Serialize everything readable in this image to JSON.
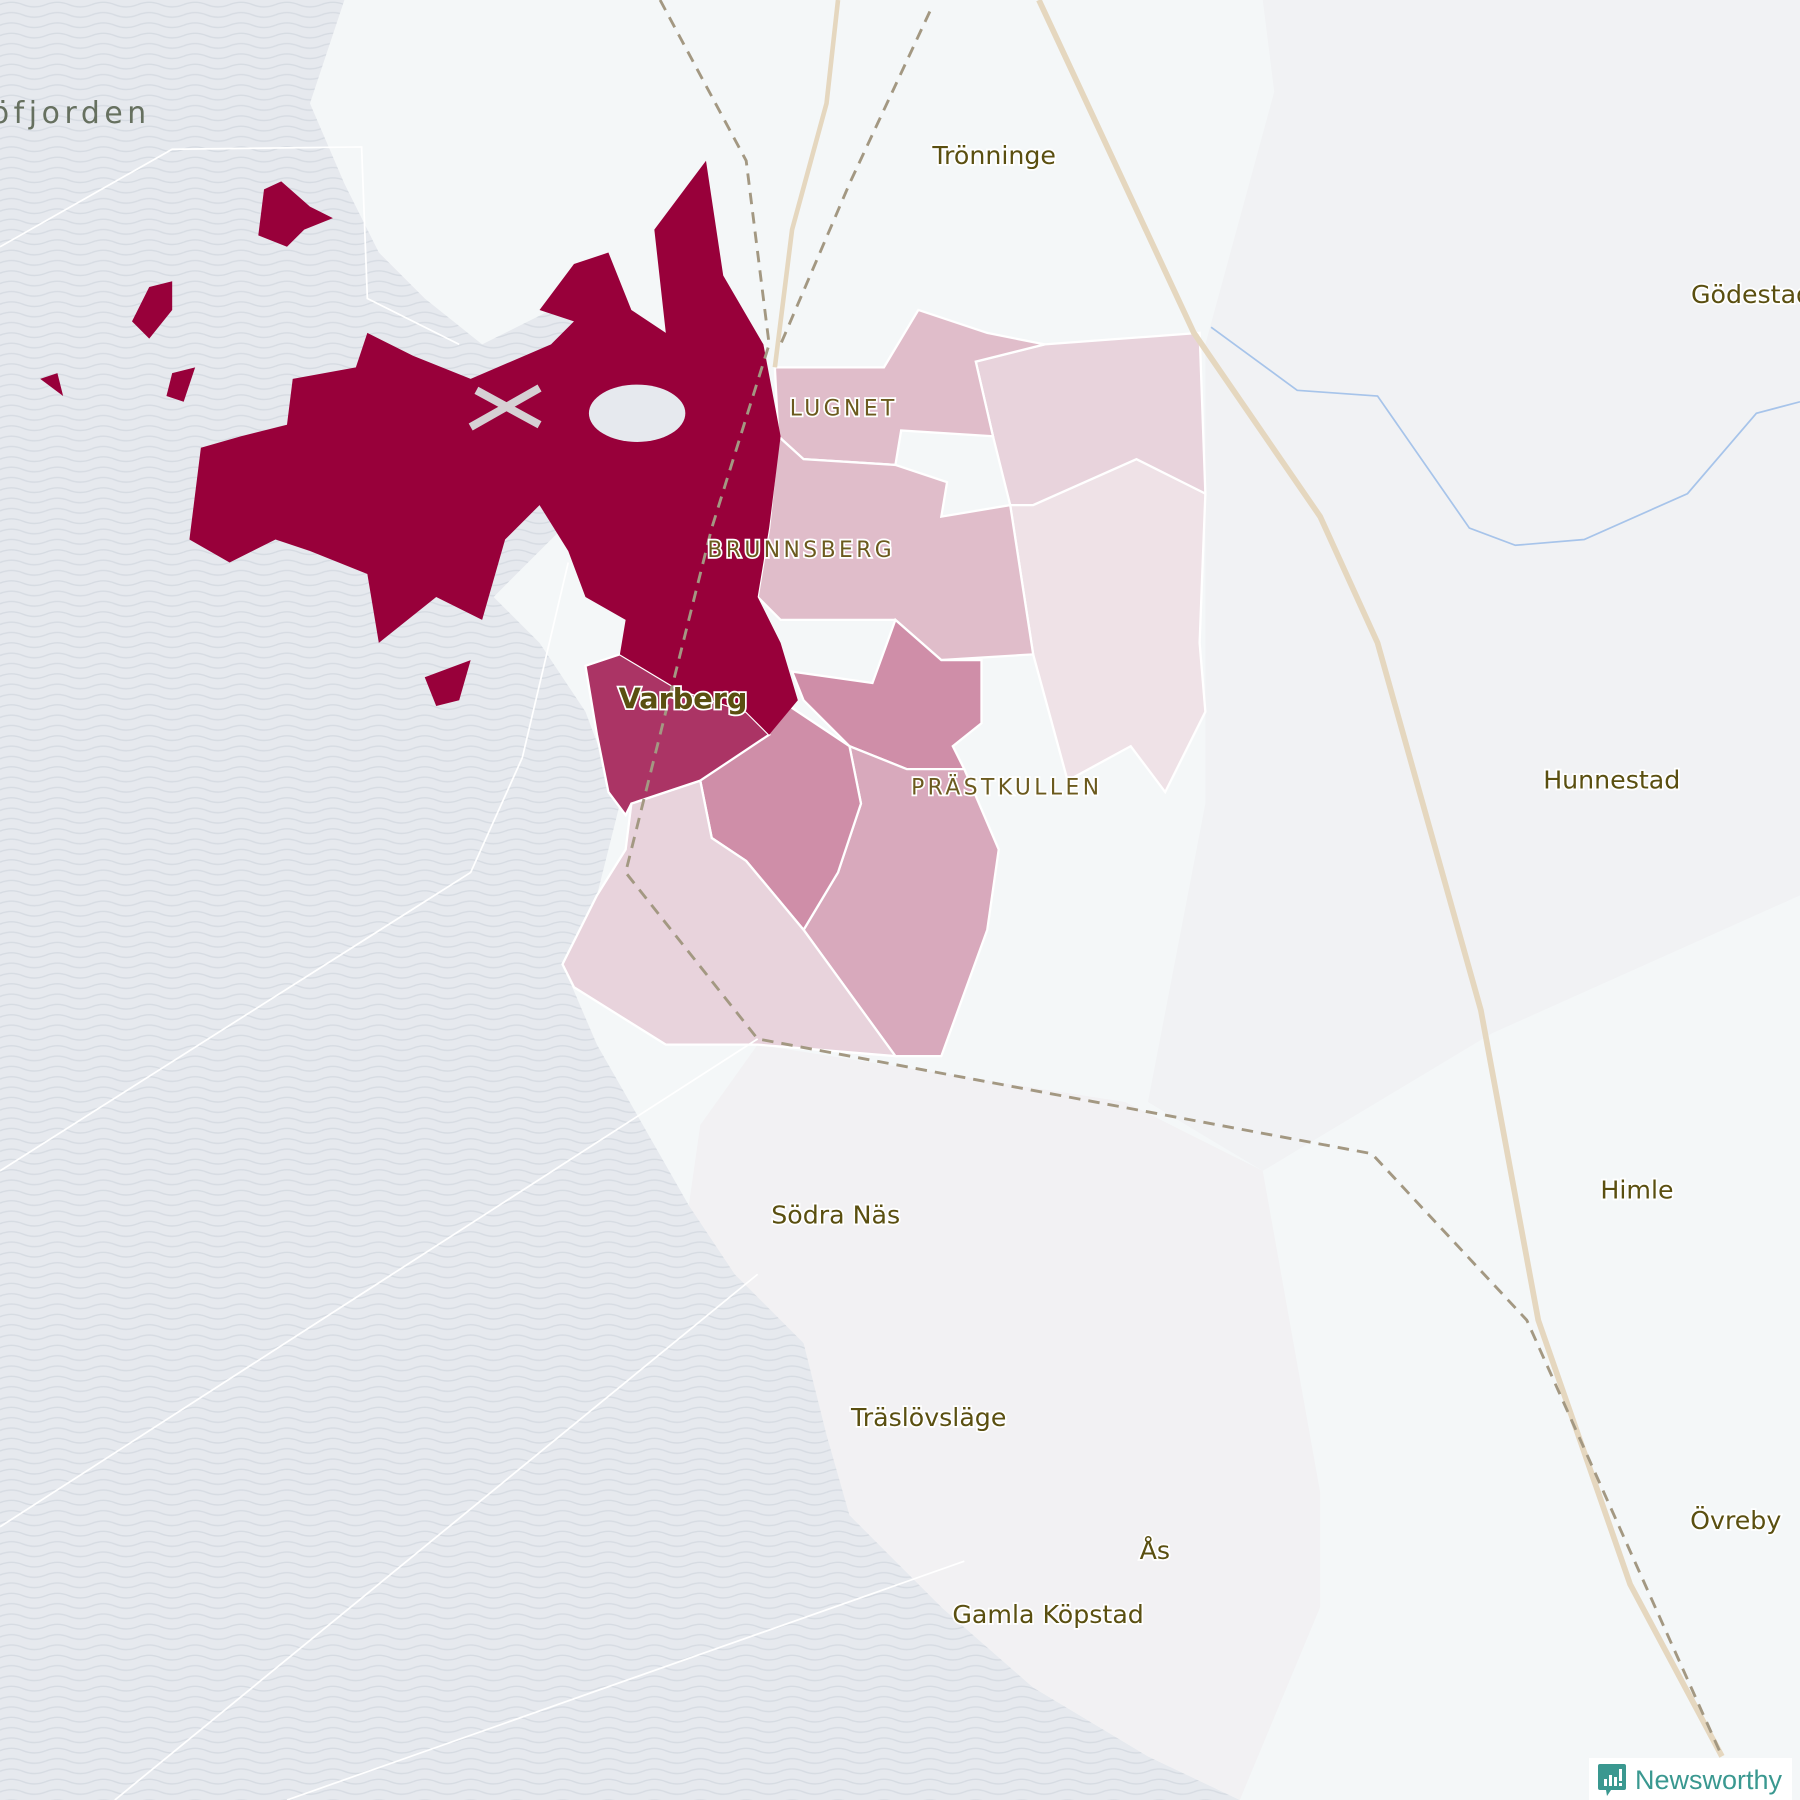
{
  "map": {
    "water_labels": [
      "öfjorden"
    ],
    "places": {
      "tronninge": "Trönninge",
      "godestad": "Gödestad",
      "hunnestad": "Hunnestad",
      "sodra_nas": "Södra Näs",
      "himle": "Himle",
      "traslovslage": "Träslövsläge",
      "ovreby": "Övreby",
      "as": "Ås",
      "gamla_kopstad": "Gamla Köpstad",
      "varberg": "Varberg"
    },
    "neighbourhoods": {
      "lugnet": "LUGNET",
      "brunnsberg": "BRUNNSBERG",
      "prastkullen": "PRÄSTKULLEN"
    },
    "colors": {
      "water": "#e6e9ee",
      "land": "#f4f7f8",
      "choropleth_high": "#98003a",
      "choropleth_mid": "#ab3465",
      "choropleth_3": "#cf8ea8",
      "choropleth_4": "#d8a9bc",
      "choropleth_5": "#e0bdca",
      "choropleth_low": "#efe2e7"
    }
  },
  "branding": {
    "logo_text": "Newsworthy",
    "logo_icon": "bar-chart-speech-bubble-icon"
  }
}
